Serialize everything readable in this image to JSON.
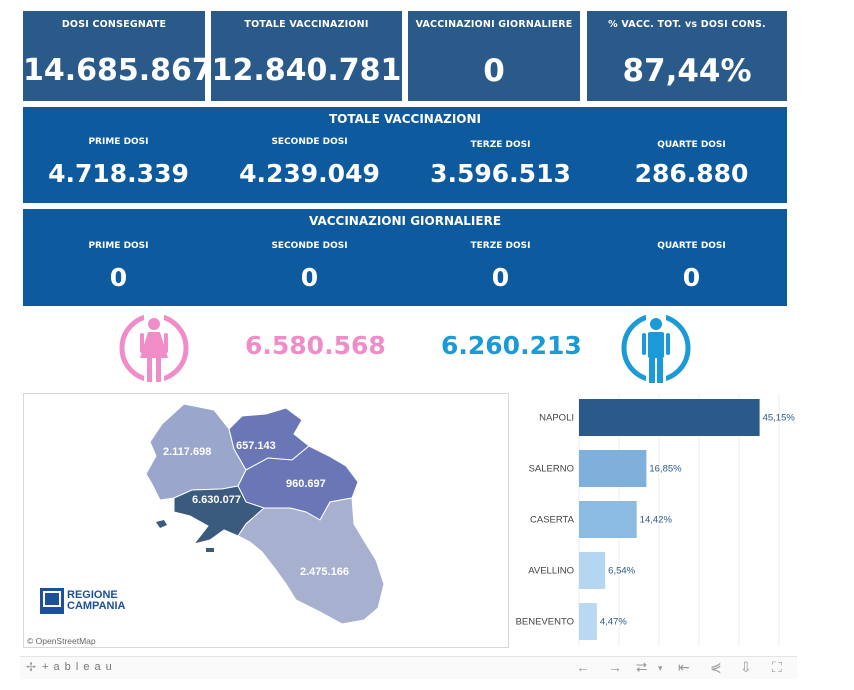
{
  "kpis": [
    {
      "label": "DOSI CONSEGNATE",
      "value": "14.685.867"
    },
    {
      "label": "TOTALE VACCINAZIONI",
      "value": "12.840.781"
    },
    {
      "label": "VACCINAZIONI GIORNALIERE",
      "value": "0"
    },
    {
      "label": "% VACC. TOT. vs DOSI CONS.",
      "value": "87,44%"
    }
  ],
  "totale": {
    "title": "TOTALE VACCINAZIONI",
    "items": [
      {
        "label": "PRIME DOSI",
        "value": "4.718.339"
      },
      {
        "label": "SECONDE DOSI",
        "value": "4.239.049"
      },
      {
        "label": "TERZE DOSI",
        "value": "3.596.513"
      },
      {
        "label": "QUARTE DOSI",
        "value": "286.880"
      }
    ]
  },
  "giornaliere": {
    "title": "VACCINAZIONI GIORNALIERE",
    "items": [
      {
        "label": "PRIME DOSI",
        "value": "0"
      },
      {
        "label": "SECONDE DOSI",
        "value": "0"
      },
      {
        "label": "TERZE DOSI",
        "value": "0"
      },
      {
        "label": "QUARTE DOSI",
        "value": "0"
      }
    ]
  },
  "gender": {
    "female_value": "6.580.568",
    "male_value": "6.260.213",
    "female_color": "#f08cc8",
    "male_color": "#1a9ad6"
  },
  "map": {
    "regions": [
      {
        "name": "Caserta",
        "value": "2.117.698"
      },
      {
        "name": "Benevento",
        "value": "657.143"
      },
      {
        "name": "Avellino",
        "value": "960.697"
      },
      {
        "name": "Napoli",
        "value": "6.630.077"
      },
      {
        "name": "Salerno",
        "value": "2.475.166"
      }
    ],
    "logo_line1": "REGIONE",
    "logo_line2": "CAMPANIA",
    "attribution": "© OpenStreetMap"
  },
  "chart_data": {
    "type": "bar",
    "orientation": "horizontal",
    "categories": [
      "NAPOLI",
      "SALERNO",
      "CASERTA",
      "AVELLINO",
      "BENEVENTO"
    ],
    "values": [
      45.15,
      16.85,
      14.42,
      6.54,
      4.47
    ],
    "value_labels": [
      "45,15%",
      "16,85%",
      "14,42%",
      "6,54%",
      "4,47%"
    ],
    "colors": [
      "#2a5a8a",
      "#7fb0dc",
      "#8cbbe2",
      "#b5d6f0",
      "#b9d9f2"
    ],
    "xlim": [
      0,
      50
    ],
    "grid": true
  },
  "toolbar": {
    "brand": "+ a b l e a u"
  }
}
